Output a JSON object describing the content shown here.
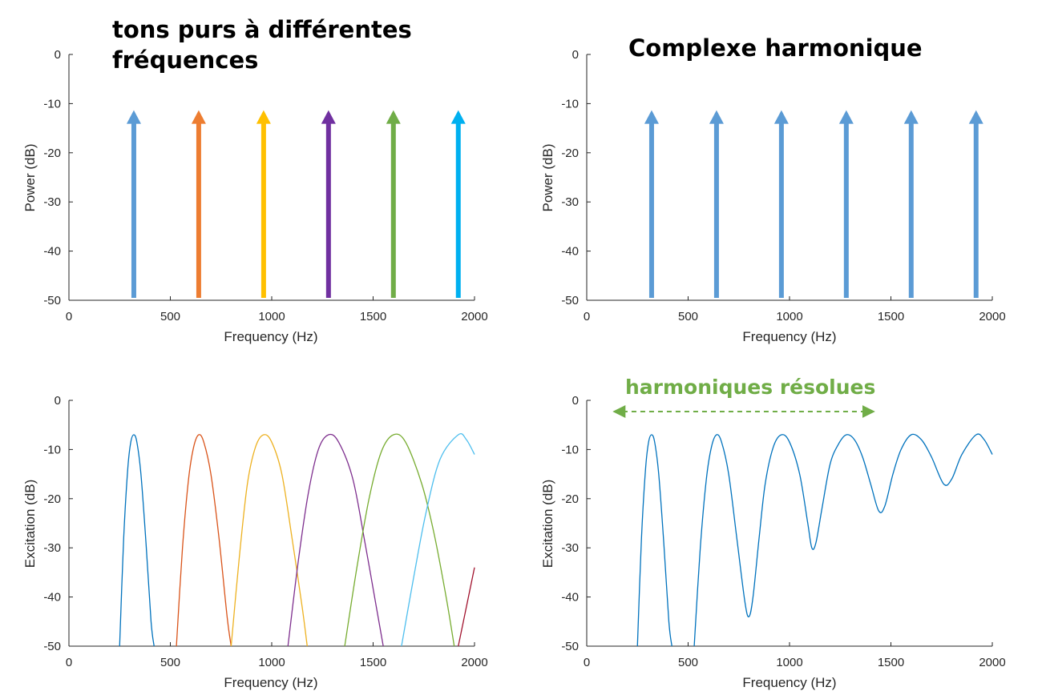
{
  "titles": {
    "left": "tons purs à différentes fréquences",
    "right": "Complexe harmonique"
  },
  "annotation": {
    "text": "harmoniques résolues",
    "color": "#70ad47",
    "x_range": [
      150,
      1400
    ]
  },
  "chart_data": [
    {
      "type": "line",
      "id": "pure-tones-spectrum",
      "title": "",
      "xlabel": "Frequency (Hz)",
      "ylabel": "Power (dB)",
      "xlim": [
        0,
        2000
      ],
      "ylim": [
        -50,
        0
      ],
      "xticks": [
        0,
        500,
        1000,
        1500,
        2000
      ],
      "yticks": [
        0,
        -10,
        -20,
        -30,
        -40,
        -50
      ],
      "grid": false,
      "arrows": [
        {
          "x": 320,
          "y_from": -50,
          "y_to": -12,
          "color": "#5b9bd5"
        },
        {
          "x": 640,
          "y_from": -50,
          "y_to": -12,
          "color": "#ed7d31"
        },
        {
          "x": 960,
          "y_from": -50,
          "y_to": -12,
          "color": "#ffc000"
        },
        {
          "x": 1280,
          "y_from": -50,
          "y_to": -12,
          "color": "#7030a0"
        },
        {
          "x": 1600,
          "y_from": -50,
          "y_to": -12,
          "color": "#70ad47"
        },
        {
          "x": 1920,
          "y_from": -50,
          "y_to": -12,
          "color": "#00b0f0"
        }
      ]
    },
    {
      "type": "line",
      "id": "harmonic-complex-spectrum",
      "title": "",
      "xlabel": "Frequency (Hz)",
      "ylabel": "Power (dB)",
      "xlim": [
        0,
        2000
      ],
      "ylim": [
        -50,
        0
      ],
      "xticks": [
        0,
        500,
        1000,
        1500,
        2000
      ],
      "yticks": [
        0,
        -10,
        -20,
        -30,
        -40,
        -50
      ],
      "grid": false,
      "arrows": [
        {
          "x": 320,
          "y_from": -50,
          "y_to": -12,
          "color": "#5b9bd5"
        },
        {
          "x": 640,
          "y_from": -50,
          "y_to": -12,
          "color": "#5b9bd5"
        },
        {
          "x": 960,
          "y_from": -50,
          "y_to": -12,
          "color": "#5b9bd5"
        },
        {
          "x": 1280,
          "y_from": -50,
          "y_to": -12,
          "color": "#5b9bd5"
        },
        {
          "x": 1600,
          "y_from": -50,
          "y_to": -12,
          "color": "#5b9bd5"
        },
        {
          "x": 1920,
          "y_from": -50,
          "y_to": -12,
          "color": "#5b9bd5"
        }
      ]
    },
    {
      "type": "line",
      "id": "pure-tones-excitation",
      "title": "",
      "xlabel": "Frequency (Hz)",
      "ylabel": "Excitation (dB)",
      "xlim": [
        0,
        2000
      ],
      "ylim": [
        -50,
        0
      ],
      "xticks": [
        0,
        500,
        1000,
        1500,
        2000
      ],
      "yticks": [
        0,
        -10,
        -20,
        -30,
        -40,
        -50
      ],
      "grid": false,
      "series": [
        {
          "color": "#0072bd",
          "x": [
            250,
            270,
            290,
            305,
            320,
            335,
            355,
            380,
            405,
            420
          ],
          "y": [
            -50,
            -28,
            -14,
            -8.5,
            -7,
            -8.5,
            -15,
            -29,
            -45,
            -50
          ]
        },
        {
          "color": "#d95319",
          "x": [
            530,
            560,
            590,
            615,
            640,
            665,
            700,
            740,
            780,
            800
          ],
          "y": [
            -50,
            -30,
            -16,
            -9.5,
            -7,
            -8.5,
            -15,
            -28,
            -44,
            -50
          ]
        },
        {
          "color": "#edb120",
          "x": [
            800,
            840,
            880,
            920,
            960,
            1000,
            1050,
            1100,
            1150,
            1175
          ],
          "y": [
            -50,
            -32,
            -17,
            -9.5,
            -7,
            -8.5,
            -15,
            -28,
            -42,
            -50
          ]
        },
        {
          "color": "#7e2f8e",
          "x": [
            1080,
            1130,
            1180,
            1230,
            1280,
            1330,
            1400,
            1460,
            1520,
            1550
          ],
          "y": [
            -50,
            -33,
            -19,
            -10,
            -7,
            -8.5,
            -16,
            -29,
            -43,
            -50
          ]
        },
        {
          "color": "#77ac30",
          "x": [
            1360,
            1420,
            1480,
            1540,
            1600,
            1660,
            1740,
            1800,
            1860,
            1900
          ],
          "y": [
            -50,
            -34,
            -20,
            -10.5,
            -7,
            -8.5,
            -17,
            -27,
            -40,
            -50
          ]
        },
        {
          "color": "#4dbeee",
          "x": [
            1640,
            1700,
            1760,
            1830,
            1920,
            1960,
            2000
          ],
          "y": [
            -50,
            -36,
            -23,
            -12,
            -7,
            -8,
            -11
          ]
        },
        {
          "color": "#a2142f",
          "x": [
            1920,
            1960,
            2000
          ],
          "y": [
            -50,
            -42,
            -34
          ]
        }
      ]
    },
    {
      "type": "line",
      "id": "harmonic-complex-excitation",
      "title": "",
      "xlabel": "Frequency (Hz)",
      "ylabel": "Excitation (dB)",
      "xlim": [
        0,
        2000
      ],
      "ylim": [
        -50,
        0
      ],
      "xticks": [
        0,
        500,
        1000,
        1500,
        2000
      ],
      "yticks": [
        0,
        -10,
        -20,
        -30,
        -40,
        -50
      ],
      "grid": false,
      "series": [
        {
          "color": "#0072bd",
          "x": [
            250,
            270,
            290,
            305,
            320,
            335,
            355,
            380,
            405,
            420
          ],
          "y": [
            -50,
            -28,
            -14,
            -8.5,
            -7,
            -8.5,
            -15,
            -29,
            -45,
            -50
          ]
        },
        {
          "color": "#0072bd",
          "x": [
            530,
            560,
            590,
            615,
            640,
            665,
            700,
            740,
            780,
            800,
            820,
            850,
            880,
            920,
            960,
            1000,
            1050,
            1090,
            1110,
            1130,
            1160,
            1200,
            1240,
            1280,
            1320,
            1360,
            1400,
            1440,
            1470,
            1510,
            1550,
            1600,
            1650,
            1700,
            1760,
            1800,
            1850,
            1920,
            1960,
            2000
          ],
          "y": [
            -50,
            -30,
            -16,
            -9.5,
            -7,
            -8.5,
            -15,
            -28,
            -41,
            -44,
            -40,
            -28,
            -17,
            -9.5,
            -7,
            -8.5,
            -15,
            -25,
            -30,
            -29,
            -22,
            -13,
            -9,
            -7,
            -8,
            -11.5,
            -17,
            -22.5,
            -21.5,
            -15,
            -10,
            -7,
            -8,
            -11.5,
            -17,
            -16,
            -11,
            -7,
            -8,
            -11
          ]
        }
      ]
    }
  ]
}
